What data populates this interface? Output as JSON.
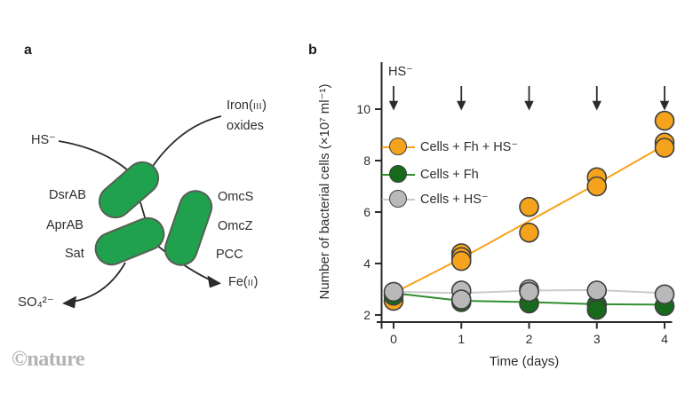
{
  "panel_a": {
    "label": "a",
    "cell_color": "#1FA14D",
    "cell_outline": "#576054",
    "labels": {
      "hs": "HS⁻",
      "iron_pre": "Iron(",
      "iron_numeral": "III",
      "iron_post": ")",
      "iron_line2": "oxides",
      "dsrab": "DsrAB",
      "aprab": "AprAB",
      "sat": "Sat",
      "omcs": "OmcS",
      "omcz": "OmcZ",
      "pcc": "PCC",
      "fe_pre": "Fe(",
      "fe_numeral": "II",
      "fe_post": ")",
      "sulfate": "SO₄²⁻"
    }
  },
  "panel_b": {
    "label": "b"
  },
  "watermark": "©nature",
  "colors": {
    "axis": "#2b2b2b",
    "marker_outline": "#3f3f3f"
  },
  "chart_data": {
    "type": "scatter",
    "title": "",
    "xlabel": "Time (days)",
    "ylabel": "Number of bacterial cells (×10⁷ ml⁻¹)",
    "xlim": [
      -0.3,
      4.2
    ],
    "ylim": [
      2,
      11.8
    ],
    "xticks": [
      0,
      1,
      2,
      3,
      4
    ],
    "yticks": [
      2,
      4,
      6,
      8,
      10
    ],
    "grid": false,
    "legend_position": "upper-left-inside",
    "annotations": {
      "label": "HS⁻",
      "arrow_days": [
        0,
        1,
        2,
        3,
        4
      ]
    },
    "series": [
      {
        "name": "Cells + Fh + HS⁻",
        "color": "#F5A31C",
        "line_color": "#F5A31C",
        "points": [
          [
            0,
            2.55
          ],
          [
            1,
            4.4
          ],
          [
            1,
            4.25
          ],
          [
            1,
            4.1
          ],
          [
            2,
            6.2
          ],
          [
            2,
            5.2
          ],
          [
            3,
            7.35
          ],
          [
            3,
            7.0
          ],
          [
            4,
            9.55
          ],
          [
            4,
            8.7
          ],
          [
            4,
            8.5
          ]
        ],
        "trend": [
          [
            0,
            2.85
          ],
          [
            1,
            4.2
          ],
          [
            2,
            5.65
          ],
          [
            3,
            7.1
          ],
          [
            4,
            8.6
          ]
        ]
      },
      {
        "name": "Cells + Fh",
        "color": "#176A1C",
        "line_color": "#2F8F2F",
        "points": [
          [
            0,
            2.75
          ],
          [
            1,
            2.5
          ],
          [
            2,
            2.45
          ],
          [
            3,
            2.4
          ],
          [
            3,
            2.2
          ],
          [
            4,
            2.35
          ]
        ],
        "trend": [
          [
            0,
            2.85
          ],
          [
            1,
            2.55
          ],
          [
            2,
            2.5
          ],
          [
            3,
            2.42
          ],
          [
            4,
            2.4
          ]
        ]
      },
      {
        "name": "Cells + HS⁻",
        "color": "#B9B9B9",
        "line_color": "#CBCBCB",
        "points": [
          [
            0,
            2.9
          ],
          [
            1,
            2.95
          ],
          [
            1,
            2.6
          ],
          [
            2,
            3.0
          ],
          [
            2,
            2.9
          ],
          [
            3,
            2.95
          ],
          [
            4,
            2.8
          ]
        ],
        "trend": [
          [
            0,
            2.9
          ],
          [
            1,
            2.85
          ],
          [
            2,
            2.95
          ],
          [
            3,
            2.97
          ],
          [
            4,
            2.85
          ]
        ]
      }
    ],
    "draw_order": {
      "lines": [
        1,
        2,
        0
      ],
      "markers": [
        {
          "series": 0,
          "from": 0,
          "to": 1
        },
        {
          "series": 1
        },
        {
          "series": 2
        },
        {
          "series": 0,
          "from": 1
        }
      ]
    }
  }
}
